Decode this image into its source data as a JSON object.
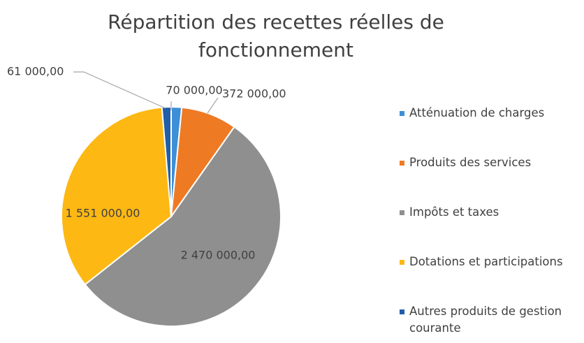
{
  "chart_data": {
    "type": "pie",
    "title": "Répartition des recettes réelles de fonctionnement",
    "categories": [
      "Atténuation de charges",
      "Produits des services",
      "Impôts et taxes",
      "Dotations et participations",
      "Autres produits de gestion courante"
    ],
    "values": [
      70000,
      372000,
      2470000,
      1551000,
      61000
    ],
    "value_labels": [
      "70 000,00",
      "372 000,00",
      "2 470 000,00",
      "1 551 000,00",
      "61 000,00"
    ],
    "colors": [
      "#3d8fd6",
      "#ef7a24",
      "#8f8f8f",
      "#fdb813",
      "#1f5ea8"
    ],
    "legend": "right"
  }
}
